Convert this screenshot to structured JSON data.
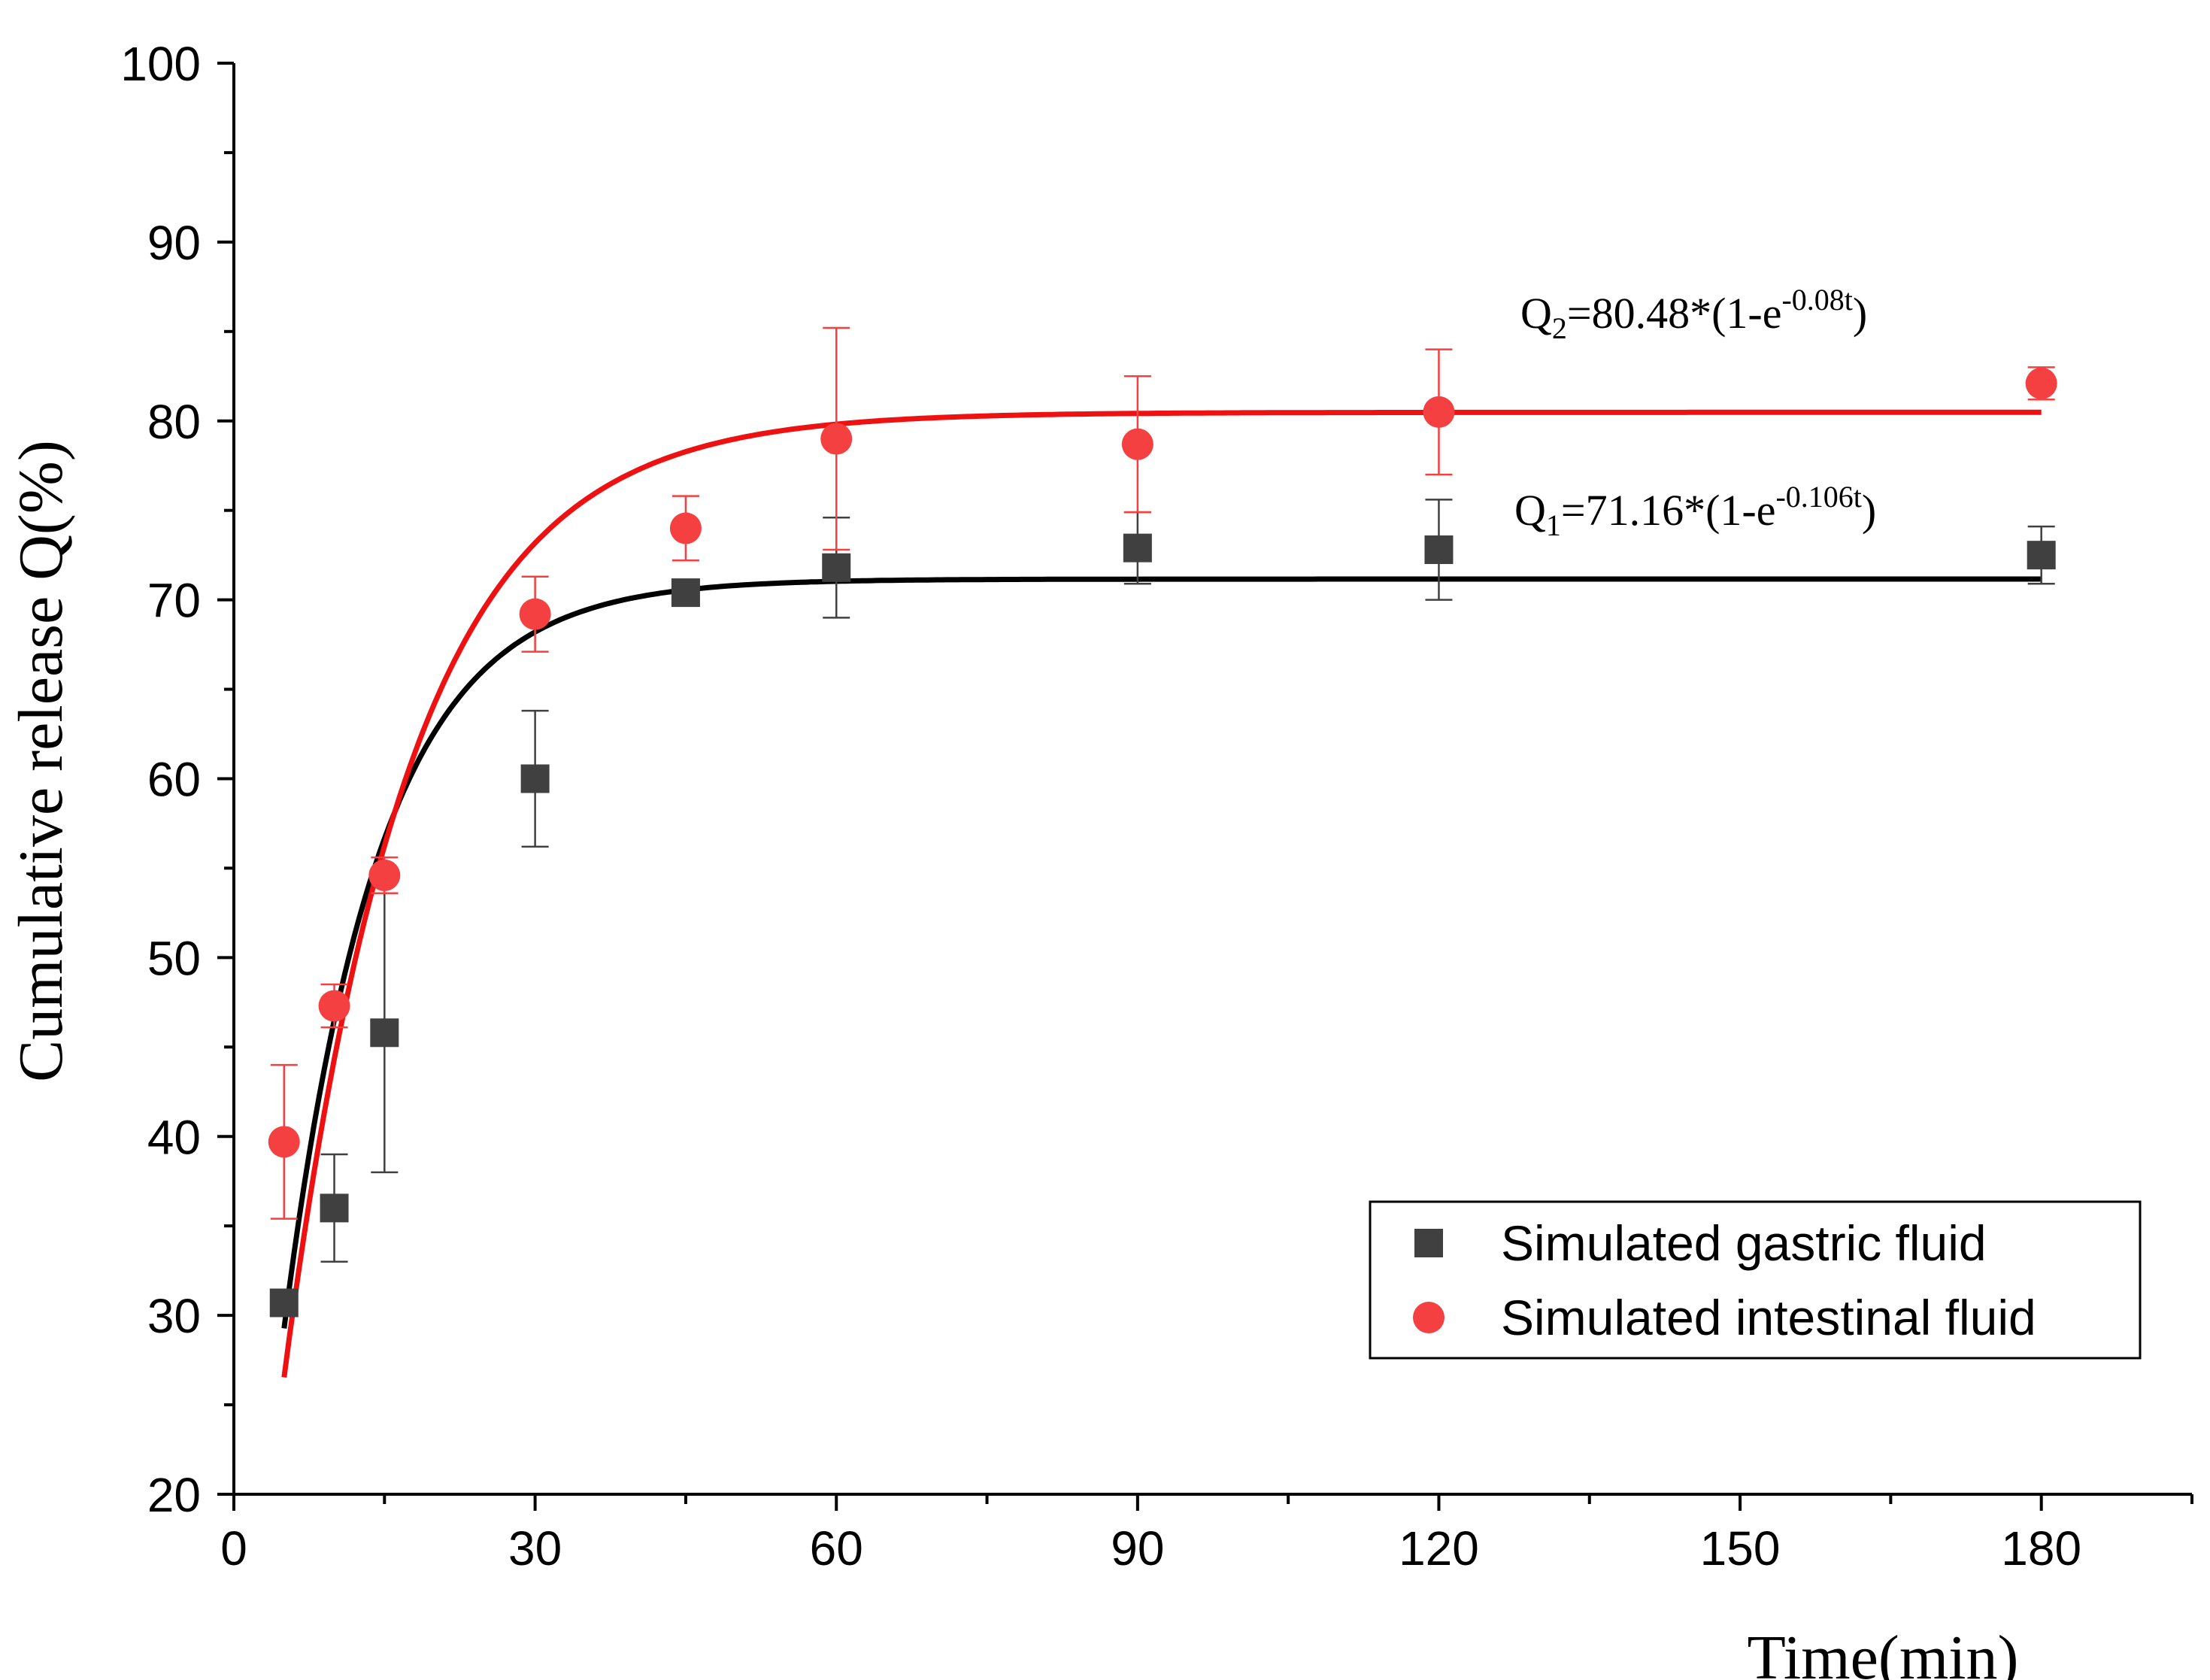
{
  "chart_data": {
    "type": "scatter",
    "title": "",
    "xlabel": "Time(min)",
    "ylabel": "Cumulative release Q(%)",
    "xlim": [
      0,
      195
    ],
    "ylim": [
      20,
      100
    ],
    "xticks": [
      0,
      30,
      60,
      90,
      120,
      150,
      180
    ],
    "yticks": [
      20,
      30,
      40,
      50,
      60,
      70,
      80,
      90,
      100
    ],
    "grid": false,
    "legend_position": "bottom-right",
    "series": [
      {
        "name": "Simulated gastric fluid",
        "marker": "square",
        "color": "#404040",
        "error_color": "#404040",
        "x": [
          5,
          10,
          15,
          30,
          45,
          60,
          90,
          120,
          180
        ],
        "y": [
          30.7,
          36.0,
          45.8,
          60.0,
          70.4,
          71.8,
          72.9,
          72.8,
          72.5
        ],
        "err": [
          0,
          3.0,
          7.8,
          3.8,
          0,
          2.8,
          2.0,
          2.8,
          1.6
        ]
      },
      {
        "name": "Simulated intestinal fluid",
        "marker": "circle",
        "color": "#f44040",
        "error_color": "#f44040",
        "x": [
          5,
          10,
          15,
          30,
          45,
          60,
          90,
          120,
          180
        ],
        "y": [
          39.7,
          47.3,
          54.6,
          69.2,
          74.0,
          79.0,
          78.7,
          80.5,
          82.1
        ],
        "err": [
          4.3,
          1.2,
          1.0,
          2.1,
          1.8,
          6.2,
          3.8,
          3.5,
          0.9
        ]
      }
    ],
    "fits": [
      {
        "series": "Simulated gastric fluid",
        "color": "#000000",
        "Qmax": 71.16,
        "k": 0.106,
        "x_range": [
          5,
          180
        ],
        "label_base": "Q",
        "label_sub": "1",
        "label_main": "=71.16*(1-e",
        "label_sup": "-0.106t",
        "label_end": ")"
      },
      {
        "series": "Simulated intestinal fluid",
        "color": "#ee1111",
        "Qmax": 80.48,
        "k": 0.08,
        "x_range": [
          5,
          180
        ],
        "label_base": "Q",
        "label_sub": "2",
        "label_main": "=80.48*(1-e",
        "label_sup": "-0.08t",
        "label_end": ")"
      }
    ]
  }
}
